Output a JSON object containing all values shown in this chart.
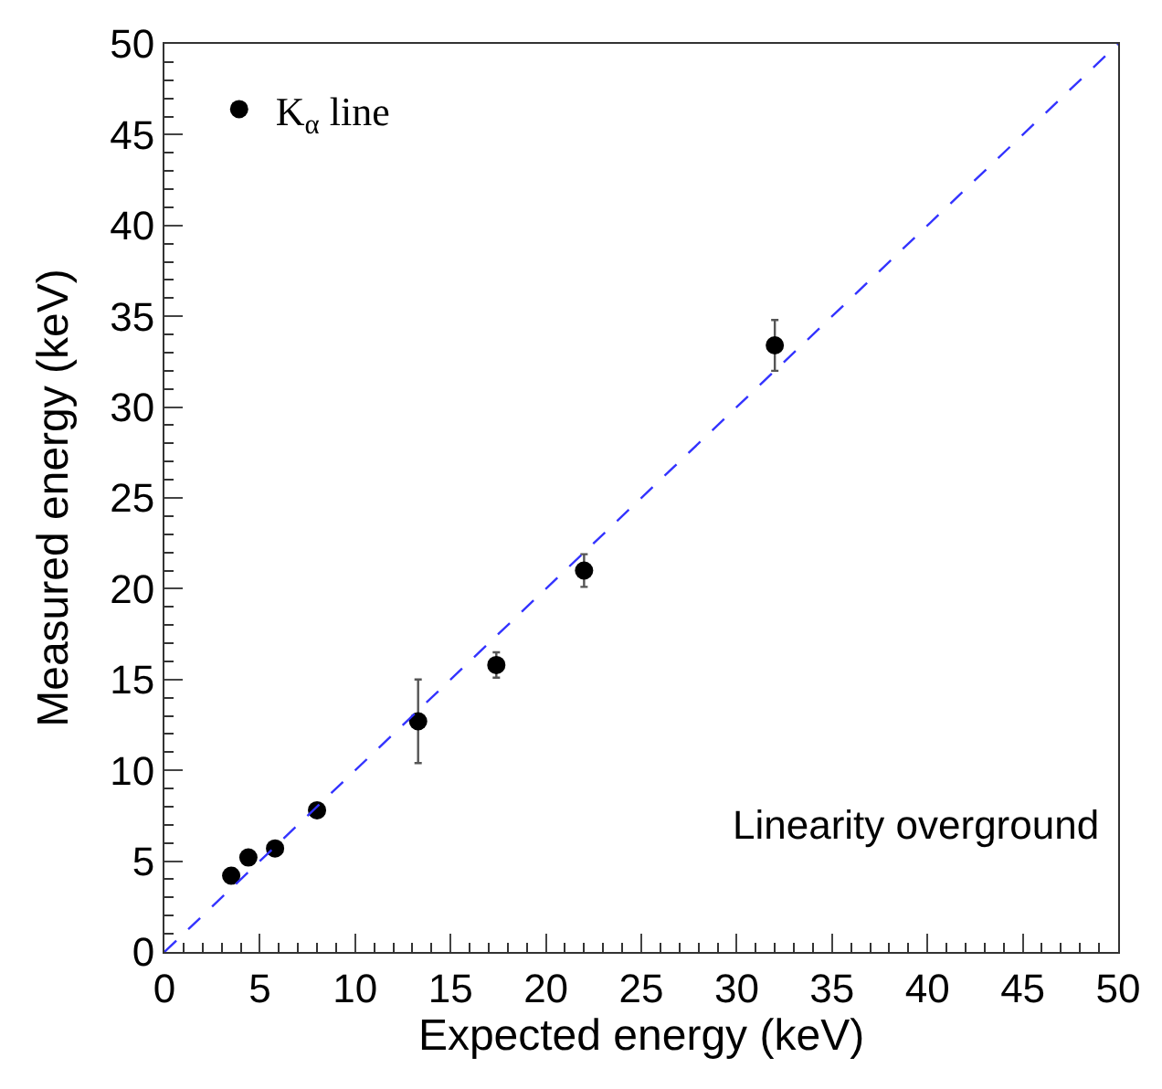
{
  "chart_data": {
    "type": "scatter",
    "xlabel": "Expected energy (keV)",
    "ylabel": "Measured energy (keV)",
    "xlim": [
      0,
      50
    ],
    "ylim": [
      0,
      50
    ],
    "xticks": [
      0,
      5,
      10,
      15,
      20,
      25,
      30,
      35,
      40,
      45,
      50
    ],
    "yticks": [
      0,
      5,
      10,
      15,
      20,
      25,
      30,
      35,
      40,
      45,
      50
    ],
    "series": [
      {
        "name": "K$_{α}$ line",
        "color": "#000000",
        "x": [
          3.5,
          4.4,
          5.8,
          8.0,
          13.3,
          17.4,
          22.0,
          32.0
        ],
        "values": [
          4.2,
          5.2,
          5.7,
          7.8,
          12.7,
          15.8,
          21.0,
          33.4
        ],
        "errors": [
          null,
          null,
          null,
          null,
          2.3,
          0.7,
          0.9,
          1.4
        ]
      },
      {
        "type": "line",
        "color": "#3333ff",
        "line_style": "dashed",
        "marker": "none",
        "x": [
          0,
          50
        ],
        "values": [
          0,
          50
        ]
      }
    ],
    "marker": "circle",
    "legend": "top left",
    "grid": false,
    "annotations": [
      "Linearity overground"
    ]
  }
}
